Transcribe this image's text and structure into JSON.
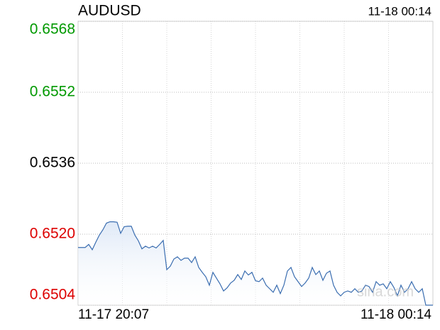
{
  "chart_data": {
    "type": "line",
    "title": "AUDUSD",
    "time": "11-18 00:14",
    "watermark": "sina.com",
    "x_labels": [
      "11-17 20:07",
      "11-18 00:14"
    ],
    "ylim": [
      0.6504,
      0.6568
    ],
    "yticks": [
      0.6568,
      0.6552,
      0.6536,
      0.652,
      0.6504
    ],
    "ytick_labels": [
      "0.6568",
      "0.6552",
      "0.6536",
      "0.6520",
      "0.6504"
    ],
    "ytick_colors": [
      "#009900",
      "#009900",
      "#000000",
      "#dd0000",
      "#dd0000"
    ],
    "grid": true,
    "series": [
      {
        "name": "AUDUSD",
        "color": "#3a6db0",
        "values": [
          0.6517,
          0.6517,
          0.6517,
          0.65177,
          0.65165,
          0.65182,
          0.65198,
          0.6521,
          0.65225,
          0.65228,
          0.65228,
          0.65227,
          0.65202,
          0.65217,
          0.65218,
          0.65218,
          0.65198,
          0.65185,
          0.65167,
          0.65173,
          0.65169,
          0.65173,
          0.65169,
          0.65177,
          0.65186,
          0.6512,
          0.65128,
          0.65144,
          0.65149,
          0.65141,
          0.65146,
          0.65146,
          0.65136,
          0.65149,
          0.65125,
          0.65114,
          0.65104,
          0.65085,
          0.65114,
          0.65101,
          0.65088,
          0.65072,
          0.65079,
          0.6509,
          0.65096,
          0.65109,
          0.65098,
          0.65117,
          0.65108,
          0.65114,
          0.65095,
          0.65093,
          0.65101,
          0.65085,
          0.65077,
          0.65069,
          0.65085,
          0.65066,
          0.65085,
          0.65117,
          0.65125,
          0.65104,
          0.65093,
          0.65082,
          0.6509,
          0.65101,
          0.65125,
          0.65109,
          0.65117,
          0.65096,
          0.65112,
          0.65117,
          0.65085,
          0.65069,
          0.65061,
          0.65069,
          0.65072,
          0.65069,
          0.65077,
          0.65069,
          0.65072,
          0.65085,
          0.65082,
          0.65069,
          0.65093,
          0.65085,
          0.65088,
          0.65077,
          0.65093,
          0.6508,
          0.65061,
          0.65085,
          0.65069,
          0.65077,
          0.65093,
          0.65077,
          0.65069,
          0.65077,
          0.6504,
          0.6504,
          0.6504
        ]
      }
    ]
  }
}
